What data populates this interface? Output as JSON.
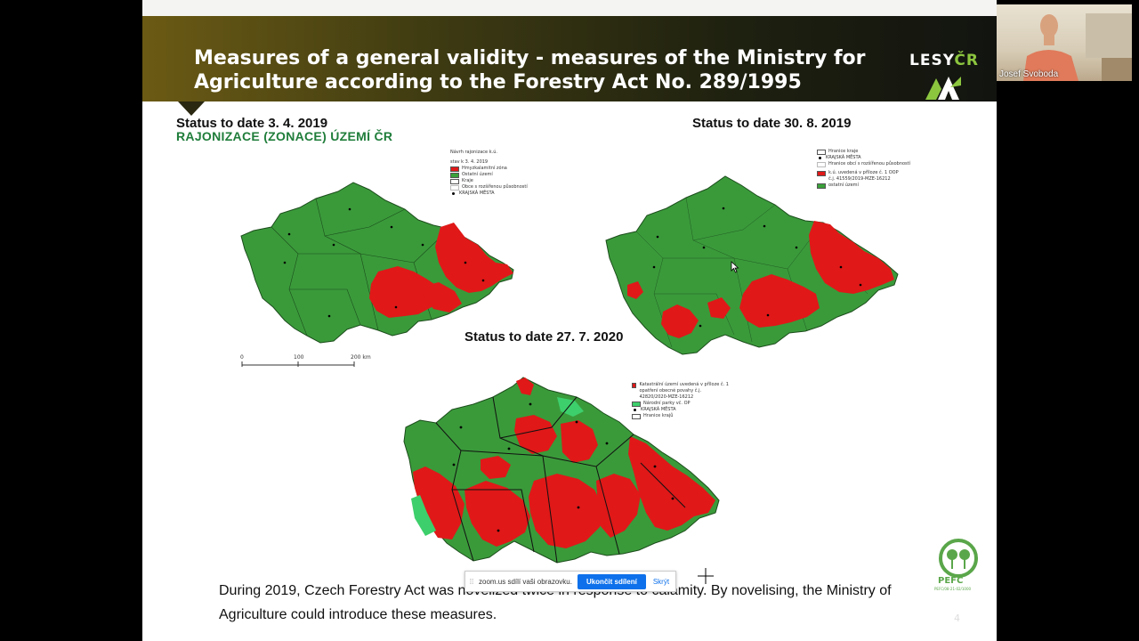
{
  "slide": {
    "title": "Measures of a general validity - measures of the Ministry for\nAgriculture according to the Forestry Act No. 289/1995",
    "logo": {
      "text_main": "LESY",
      "text_accent": "ČR"
    },
    "maps": [
      {
        "caption": "Status to date 3. 4. 2019",
        "subtitle": "RAJONIZACE (ZONACE) ÚZEMÍ ČR",
        "legend": {
          "title": "Návrh rajonizace k.ú.",
          "date": "stav k 3. 4. 2019",
          "items": [
            {
              "label": "Hmyzkalamitní zóna",
              "color": "#e01818"
            },
            {
              "label": "Ostatní území",
              "color": "#3aa13a"
            },
            {
              "label": "Kraje",
              "color": "#ffffff"
            },
            {
              "label": "Obce s rozšířenou působností",
              "color": "#ffffff"
            },
            {
              "label": "KRAJSKÁ MĚSTA",
              "color": "#000000",
              "dot": true
            }
          ]
        },
        "scale_labels": [
          "0",
          "100",
          "200 km"
        ]
      },
      {
        "caption": "Status to date 30. 8. 2019",
        "legend": {
          "items": [
            {
              "label": "Hranice kraje",
              "color": "#ffffff"
            },
            {
              "label": "KRAJSKÁ MĚSTA",
              "color": "#000000",
              "dot": true
            },
            {
              "label": "Hranice obcí s rozšířenou působností",
              "color": "#ffffff"
            },
            {
              "label": "k.ú. uvedená v příloze č. 1 OOP",
              "color": "#e01818"
            },
            {
              "label": "č.j. 41559/2019-MZE-16212",
              "color": "#ffffff"
            },
            {
              "label": "ostatní území",
              "color": "#3aa13a"
            }
          ]
        }
      },
      {
        "caption": "Status to date 27. 7. 2020",
        "legend": {
          "items": [
            {
              "label": "Katastrální území uvedená v příloze č. 1 opatření obecné povahy č.j. 42820/2020-MZE-16212",
              "color": "#e01818"
            },
            {
              "label": "Národní parky vč. OP",
              "color": "#3dcf6b"
            },
            {
              "label": "KRAJSKÁ MĚSTA",
              "color": "#000000",
              "dot": true
            },
            {
              "label": "Hranice krajů",
              "color": "#ffffff"
            }
          ]
        }
      }
    ],
    "footer_text": "During 2019, Czech Forestry Act was novelized twice in response to calamity. By novelising, the Ministry of Agriculture could introduce these measures.",
    "pefc": {
      "label": "PEFC",
      "sublabel": "PEFC/08-21-02/1000"
    },
    "page_number": "4",
    "colors": {
      "calamity_red": "#e01818",
      "forest_green": "#3a9a3a",
      "national_park_green": "#3dcf6b",
      "subhead_green": "#1f7d3a"
    }
  },
  "zoom_share_bar": {
    "message": "zoom.us sdílí vaši obrazovku.",
    "stop_label": "Ukončit sdílení",
    "hide_label": "Skrýt"
  },
  "participant_video": {
    "name": "Josef Svoboda"
  }
}
